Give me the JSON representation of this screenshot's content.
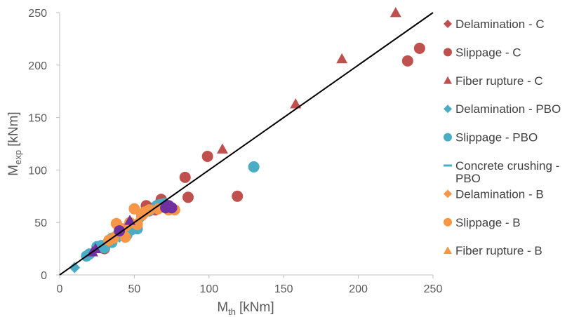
{
  "chart_data": {
    "type": "scatter",
    "title": "",
    "xlabel": {
      "main": "M",
      "sub": "th",
      "unit": "[kNm]"
    },
    "ylabel": {
      "main": "M",
      "sub": "exp",
      "unit": "[kNm]"
    },
    "xlim": [
      0,
      250
    ],
    "ylim": [
      0,
      250
    ],
    "xticks": [
      0,
      50,
      100,
      150,
      200,
      250
    ],
    "yticks": [
      0,
      50,
      100,
      150,
      200,
      250
    ],
    "grid": false,
    "legend_position": "right",
    "reference_line": {
      "from": [
        0,
        0
      ],
      "to": [
        250,
        250
      ],
      "color": "#000000"
    },
    "series": [
      {
        "name": "Delamination - C",
        "marker": "diamond",
        "color": "#C0504D",
        "points": []
      },
      {
        "name": "Slippage - C",
        "marker": "circle",
        "color": "#C0504D",
        "points": [
          [
            241,
            216
          ],
          [
            233,
            204
          ],
          [
            99,
            113
          ],
          [
            84,
            93
          ],
          [
            86,
            74
          ],
          [
            119,
            75
          ],
          [
            68,
            72
          ],
          [
            58,
            66
          ],
          [
            55,
            57
          ],
          [
            72,
            65
          ],
          [
            35,
            33
          ],
          [
            30,
            25
          ],
          [
            64,
            62
          ],
          [
            60,
            64
          ],
          [
            62,
            63
          ]
        ]
      },
      {
        "name": "Fiber rupture - C",
        "marker": "triangle",
        "color": "#C0504D",
        "points": [
          [
            225,
            250
          ],
          [
            189,
            206
          ],
          [
            158,
            163
          ],
          [
            109,
            120
          ]
        ]
      },
      {
        "name": "Delamination - PBO",
        "marker": "diamond",
        "color": "#4BACC6",
        "points": [
          [
            10,
            7
          ],
          [
            18,
            18
          ],
          [
            25,
            27
          ],
          [
            32,
            30
          ],
          [
            40,
            36
          ],
          [
            45,
            45
          ],
          [
            50,
            48
          ],
          [
            55,
            55
          ]
        ]
      },
      {
        "name": "Slippage - PBO",
        "marker": "circle",
        "color": "#4BACC6",
        "points": [
          [
            130,
            103
          ],
          [
            18,
            18
          ],
          [
            20,
            20
          ],
          [
            25,
            27
          ],
          [
            28,
            28
          ],
          [
            30,
            26
          ],
          [
            35,
            35
          ],
          [
            38,
            37
          ],
          [
            42,
            40
          ],
          [
            45,
            38
          ],
          [
            48,
            43
          ],
          [
            52,
            44
          ],
          [
            55,
            57
          ],
          [
            60,
            61
          ],
          [
            65,
            66
          ],
          [
            67,
            67
          ],
          [
            70,
            68
          ],
          [
            35,
            31
          ],
          [
            33,
            33
          ]
        ]
      },
      {
        "name": "Concrete crushing - PBO",
        "marker": "dash",
        "color": "#4BACC6",
        "points": []
      },
      {
        "name": "Delamination - B",
        "marker": "diamond",
        "color": "#F79646",
        "points": [
          [
            33,
            32
          ],
          [
            36,
            36
          ],
          [
            40,
            42
          ],
          [
            46,
            47
          ],
          [
            52,
            50
          ]
        ]
      },
      {
        "name": "Slippage - B",
        "marker": "circle",
        "color": "#F79646",
        "points": [
          [
            50,
            63
          ],
          [
            38,
            49
          ],
          [
            44,
            36
          ],
          [
            52,
            48
          ],
          [
            47,
            50
          ],
          [
            57,
            60
          ],
          [
            60,
            62
          ],
          [
            66,
            63
          ],
          [
            73,
            62
          ],
          [
            77,
            62
          ],
          [
            74,
            64
          ],
          [
            33,
            33
          ],
          [
            36,
            35
          ],
          [
            42,
            44
          ],
          [
            55,
            57
          ]
        ]
      },
      {
        "name": "Fiber rupture - B",
        "marker": "triangle",
        "color": "#F79646",
        "points": []
      },
      {
        "name": "",
        "marker": "triangle",
        "color": "#7030A0",
        "points": [
          [
            24,
            25
          ],
          [
            22,
            22
          ],
          [
            47,
            52
          ]
        ]
      },
      {
        "name": "",
        "marker": "circle",
        "color": "#7030A0",
        "points": [
          [
            40,
            42
          ],
          [
            71,
            64
          ],
          [
            75,
            64
          ],
          [
            73,
            66
          ]
        ]
      }
    ]
  }
}
